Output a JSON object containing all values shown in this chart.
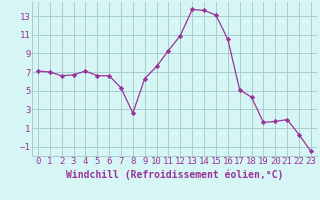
{
  "x": [
    0,
    1,
    2,
    3,
    4,
    5,
    6,
    7,
    8,
    9,
    10,
    11,
    12,
    13,
    14,
    15,
    16,
    17,
    18,
    19,
    20,
    21,
    22,
    23
  ],
  "y": [
    7.1,
    7.0,
    6.6,
    6.7,
    7.1,
    6.6,
    6.6,
    5.3,
    2.6,
    6.3,
    7.6,
    9.3,
    10.9,
    13.7,
    13.6,
    13.1,
    10.5,
    5.1,
    4.3,
    1.6,
    1.7,
    1.9,
    0.3,
    -1.5
  ],
  "line_color": "#993399",
  "marker": "D",
  "marker_size": 2.2,
  "bg_color": "#d6f5f5",
  "grid_color": "#aacccc",
  "xlabel": "Windchill (Refroidissement éolien,°C)",
  "xlim": [
    -0.5,
    23.5
  ],
  "ylim": [
    -2,
    14.5
  ],
  "xticks": [
    0,
    1,
    2,
    3,
    4,
    5,
    6,
    7,
    8,
    9,
    10,
    11,
    12,
    13,
    14,
    15,
    16,
    17,
    18,
    19,
    20,
    21,
    22,
    23
  ],
  "yticks": [
    -1,
    1,
    3,
    5,
    7,
    9,
    11,
    13
  ],
  "font_color": "#993399",
  "tick_font_size": 6.5,
  "xlabel_font_size": 7.0
}
